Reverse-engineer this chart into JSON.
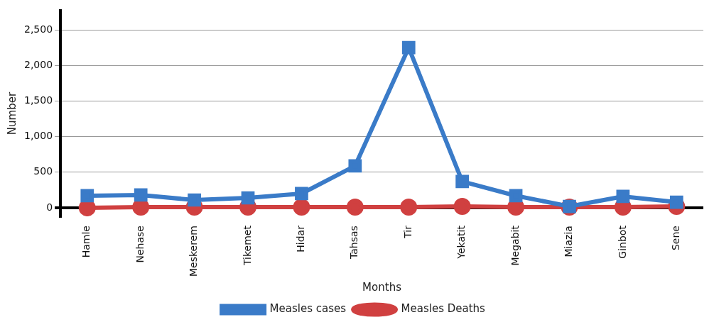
{
  "chart_data": {
    "type": "line",
    "xlabel": "Months",
    "ylabel": "Number",
    "categories": [
      "Hamle",
      "Nehase",
      "Meskerem",
      "Tikemet",
      "Hidar",
      "Tahsas",
      "Tir",
      "Yekatit",
      "Megabit",
      "Miazia",
      "Ginbot",
      "Sene"
    ],
    "series": [
      {
        "name": "Measles cases",
        "color": "#3a7bc8",
        "marker": "square",
        "values": [
          170,
          180,
          110,
          140,
          200,
          590,
          2250,
          370,
          170,
          20,
          160,
          80
        ]
      },
      {
        "name": "Measles Deaths",
        "color": "#d04040",
        "marker": "circle",
        "values": [
          0,
          10,
          10,
          10,
          10,
          10,
          10,
          20,
          10,
          10,
          10,
          20
        ]
      }
    ],
    "ylim": [
      -120,
      2770
    ],
    "yticks": [
      0,
      500,
      {
        "value": 1000,
        "label": "1,000"
      },
      {
        "value": 1500,
        "label": "1,500"
      },
      {
        "value": 2000,
        "label": "2,000"
      },
      {
        "value": 2500,
        "label": "2,500"
      }
    ],
    "grid": "y",
    "legend": "bottom",
    "line_style": "solid"
  }
}
